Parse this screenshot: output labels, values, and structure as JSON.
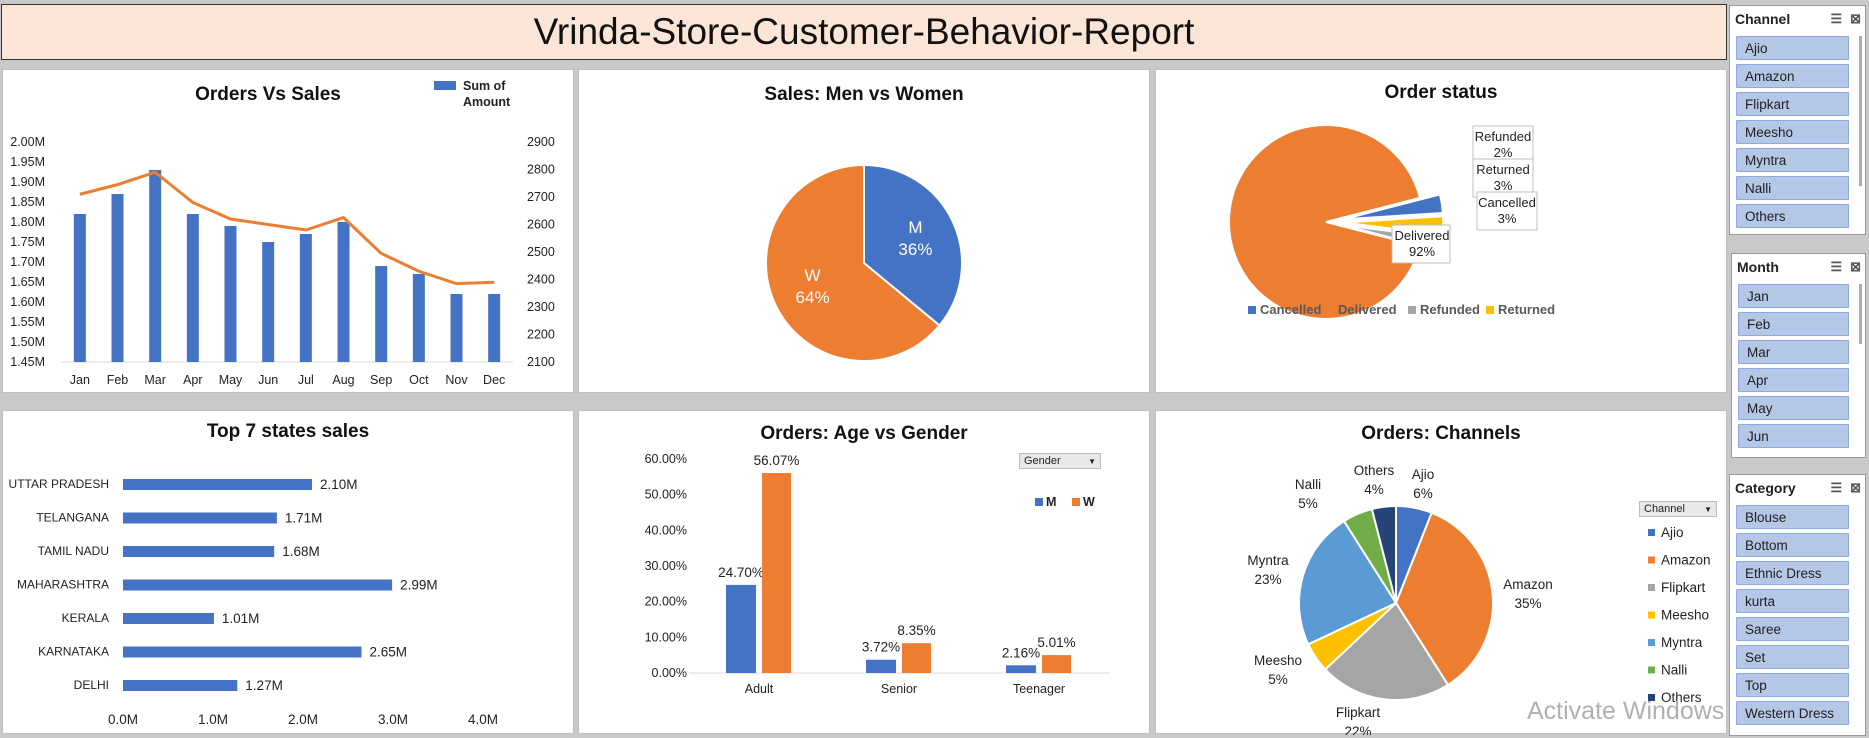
{
  "header": {
    "title": "Vrinda-Store-Customer-Behavior-Report"
  },
  "watermark": "Activate Windows",
  "colors": {
    "blue": "#4472c4",
    "orange": "#ed7d31",
    "gray": "#a5a5a5",
    "yellow": "#ffc000",
    "lightblue": "#5b9bd5",
    "green": "#70ad47",
    "navy": "#264478"
  },
  "chart_data": [
    {
      "id": "orders-vs-sales",
      "type": "bar",
      "title": "Orders Vs Sales",
      "categories": [
        "Jan",
        "Feb",
        "Mar",
        "Apr",
        "May",
        "Jun",
        "Jul",
        "Aug",
        "Sep",
        "Oct",
        "Nov",
        "Dec"
      ],
      "series": [
        {
          "name": "Sum of Amount",
          "type": "bar",
          "axis": "left",
          "values": [
            1.82,
            1.87,
            1.93,
            1.82,
            1.79,
            1.75,
            1.77,
            1.8,
            1.69,
            1.67,
            1.62,
            1.62
          ]
        },
        {
          "type": "line",
          "axis": "right",
          "values": [
            2710,
            2745,
            2790,
            2680,
            2620,
            2600,
            2580,
            2625,
            2495,
            2430,
            2385,
            2390
          ]
        }
      ],
      "y_left_ticks": [
        "2.00M",
        "1.95M",
        "1.90M",
        "1.85M",
        "1.80M",
        "1.75M",
        "1.70M",
        "1.65M",
        "1.60M",
        "1.55M",
        "1.50M",
        "1.45M"
      ],
      "ylim_left": [
        1.45,
        2.0
      ],
      "y_right_ticks": [
        "2900",
        "2800",
        "2700",
        "2600",
        "2500",
        "2400",
        "2300",
        "2200",
        "2100"
      ],
      "ylim_right": [
        2100,
        2900
      ],
      "legend": "top-right"
    },
    {
      "id": "men-vs-women",
      "type": "pie",
      "title": "Sales: Men vs Women",
      "labels": [
        "M",
        "W"
      ],
      "values": [
        36,
        64
      ],
      "value_labels": [
        "36%",
        "64%"
      ]
    },
    {
      "id": "order-status",
      "type": "pie",
      "title": "Order status",
      "labels": [
        "Cancelled",
        "Delivered",
        "Refunded",
        "Returned"
      ],
      "values": [
        3,
        92,
        2,
        3
      ],
      "value_labels": [
        "3%",
        "92%",
        "2%",
        "3%"
      ],
      "legend": "bottom"
    },
    {
      "id": "top-states",
      "type": "bar",
      "orientation": "horizontal",
      "title": "Top 7 states sales",
      "categories": [
        "UTTAR PRADESH",
        "TELANGANA",
        "TAMIL NADU",
        "MAHARASHTRA",
        "KERALA",
        "KARNATAKA",
        "DELHI"
      ],
      "values": [
        2.1,
        1.71,
        1.68,
        2.99,
        1.01,
        2.65,
        1.27
      ],
      "value_labels": [
        "2.10M",
        "1.71M",
        "1.68M",
        "2.99M",
        "1.01M",
        "2.65M",
        "1.27M"
      ],
      "x_ticks": [
        "0.0M",
        "1.0M",
        "2.0M",
        "3.0M",
        "4.0M"
      ],
      "xlim": [
        0,
        4
      ]
    },
    {
      "id": "age-vs-gender",
      "type": "bar",
      "title": "Orders: Age vs Gender",
      "categories": [
        "Adult",
        "Senior",
        "Teenager"
      ],
      "series": [
        {
          "name": "M",
          "values": [
            24.7,
            3.72,
            2.16
          ],
          "value_labels": [
            "24.70%",
            "3.72%",
            "2.16%"
          ]
        },
        {
          "name": "W",
          "values": [
            56.07,
            8.35,
            5.01
          ],
          "value_labels": [
            "56.07%",
            "8.35%",
            "5.01%"
          ]
        }
      ],
      "y_ticks": [
        "60.00%",
        "50.00%",
        "40.00%",
        "30.00%",
        "20.00%",
        "10.00%",
        "0.00%"
      ],
      "ylim": [
        0,
        60
      ],
      "filter_label": "Gender",
      "legend": "top-right"
    },
    {
      "id": "channels",
      "type": "pie",
      "title": "Orders: Channels",
      "labels": [
        "Ajio",
        "Amazon",
        "Flipkart",
        "Meesho",
        "Myntra",
        "Nalli",
        "Others"
      ],
      "values": [
        6,
        35,
        22,
        5,
        23,
        5,
        4
      ],
      "value_labels": [
        "6%",
        "35%",
        "22%",
        "5%",
        "23%",
        "5%",
        "4%"
      ],
      "filter_label": "Channel",
      "legend": "right"
    }
  ],
  "slicers": {
    "channel": {
      "title": "Channel",
      "items": [
        "Ajio",
        "Amazon",
        "Flipkart",
        "Meesho",
        "Myntra",
        "Nalli",
        "Others"
      ]
    },
    "month": {
      "title": "Month",
      "items": [
        "Jan",
        "Feb",
        "Mar",
        "Apr",
        "May",
        "Jun"
      ]
    },
    "category": {
      "title": "Category",
      "items": [
        "Blouse",
        "Bottom",
        "Ethnic Dress",
        "kurta",
        "Saree",
        "Set",
        "Top",
        "Western Dress"
      ]
    }
  }
}
